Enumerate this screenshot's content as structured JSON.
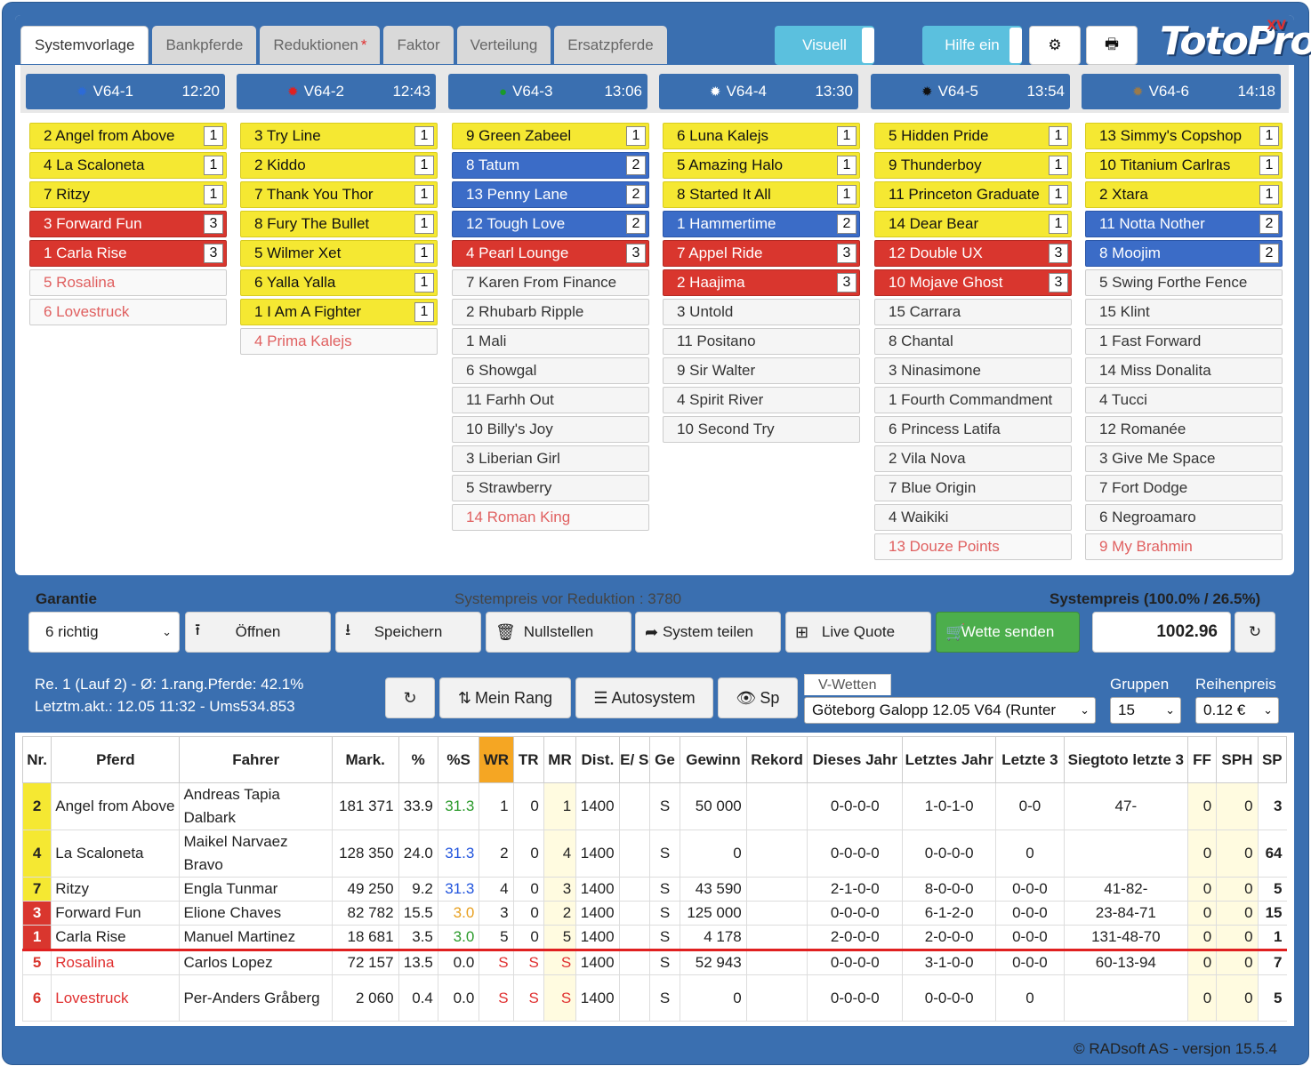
{
  "tabs": [
    "Systemvorlage",
    "Bankpferde",
    "Reduktionen",
    "Faktor",
    "Verteilung",
    "Ersatzpferde"
  ],
  "reduktionen_marker": "*",
  "top": {
    "visuell": "Visuell",
    "hilfe": "Hilfe ein",
    "logo": "TotoPro",
    "logo_sup": "XV"
  },
  "races": [
    {
      "name": "V64-1",
      "time": "12:20",
      "dot": "#2d6bd6",
      "dot_icon": "sun-icon"
    },
    {
      "name": "V64-2",
      "time": "12:43",
      "dot": "#e02020",
      "dot_icon": "sun-icon"
    },
    {
      "name": "V64-3",
      "time": "13:06",
      "dot": "#1a9a2a",
      "dot_icon": "circle-icon"
    },
    {
      "name": "V64-4",
      "time": "13:30",
      "dot": "#ffffff",
      "dot_icon": "sun-icon"
    },
    {
      "name": "V64-5",
      "time": "13:54",
      "dot": "#111111",
      "dot_icon": "sun-icon"
    },
    {
      "name": "V64-6",
      "time": "14:18",
      "dot": "#9a7a4a",
      "dot_icon": "sun-icon"
    }
  ],
  "columns": [
    [
      {
        "t": "2 Angel from Above",
        "c": "y",
        "r": "1"
      },
      {
        "t": "4 La Scaloneta",
        "c": "y",
        "r": "1"
      },
      {
        "t": "7 Ritzy",
        "c": "y",
        "r": "1"
      },
      {
        "t": "3 Forward Fun",
        "c": "r",
        "r": "3"
      },
      {
        "t": "1 Carla Rise",
        "c": "r",
        "r": "3"
      },
      {
        "t": "5 Rosalina",
        "c": "x",
        "r": ""
      },
      {
        "t": "6 Lovestruck",
        "c": "x",
        "r": ""
      }
    ],
    [
      {
        "t": "3 Try Line",
        "c": "y",
        "r": "1"
      },
      {
        "t": "2 Kiddo",
        "c": "y",
        "r": "1"
      },
      {
        "t": "7 Thank You Thor",
        "c": "y",
        "r": "1"
      },
      {
        "t": "8 Fury The Bullet",
        "c": "y",
        "r": "1"
      },
      {
        "t": "5 Wilmer Xet",
        "c": "y",
        "r": "1"
      },
      {
        "t": "6 Yalla Yalla",
        "c": "y",
        "r": "1"
      },
      {
        "t": "1 I Am A Fighter",
        "c": "y",
        "r": "1"
      },
      {
        "t": "4 Prima Kalejs",
        "c": "x",
        "r": ""
      }
    ],
    [
      {
        "t": "9 Green Zabeel",
        "c": "y",
        "r": "1"
      },
      {
        "t": "8 Tatum",
        "c": "b",
        "r": "2"
      },
      {
        "t": "13 Penny Lane",
        "c": "b",
        "r": "2"
      },
      {
        "t": "12 Tough Love",
        "c": "b",
        "r": "2"
      },
      {
        "t": "4 Pearl Lounge",
        "c": "r",
        "r": "3"
      },
      {
        "t": "7 Karen From Finance",
        "c": "w",
        "r": ""
      },
      {
        "t": "2 Rhubarb Ripple",
        "c": "w",
        "r": ""
      },
      {
        "t": "1 Mali",
        "c": "w",
        "r": ""
      },
      {
        "t": "6 Showgal",
        "c": "w",
        "r": ""
      },
      {
        "t": "11 Farhh Out",
        "c": "w",
        "r": ""
      },
      {
        "t": "10 Billy's Joy",
        "c": "w",
        "r": ""
      },
      {
        "t": "3 Liberian Girl",
        "c": "w",
        "r": ""
      },
      {
        "t": "5 Strawberry",
        "c": "w",
        "r": ""
      },
      {
        "t": "14 Roman King",
        "c": "x",
        "r": ""
      }
    ],
    [
      {
        "t": "6 Luna Kalejs",
        "c": "y",
        "r": "1"
      },
      {
        "t": "5 Amazing Halo",
        "c": "y",
        "r": "1"
      },
      {
        "t": "8 Started It All",
        "c": "y",
        "r": "1"
      },
      {
        "t": "1 Hammertime",
        "c": "b",
        "r": "2"
      },
      {
        "t": "7 Appel Ride",
        "c": "r",
        "r": "3"
      },
      {
        "t": "2 Haajima",
        "c": "r",
        "r": "3"
      },
      {
        "t": "3 Untold",
        "c": "w",
        "r": ""
      },
      {
        "t": "11 Positano",
        "c": "w",
        "r": ""
      },
      {
        "t": "9 Sir Walter",
        "c": "w",
        "r": ""
      },
      {
        "t": "4 Spirit River",
        "c": "w",
        "r": ""
      },
      {
        "t": "10 Second Try",
        "c": "w",
        "r": ""
      }
    ],
    [
      {
        "t": "5 Hidden Pride",
        "c": "y",
        "r": "1"
      },
      {
        "t": "9 Thunderboy",
        "c": "y",
        "r": "1"
      },
      {
        "t": "11 Princeton Graduate",
        "c": "y",
        "r": "1"
      },
      {
        "t": "14 Dear Bear",
        "c": "y",
        "r": "1"
      },
      {
        "t": "12 Double UX",
        "c": "r",
        "r": "3"
      },
      {
        "t": "10 Mojave Ghost",
        "c": "r",
        "r": "3"
      },
      {
        "t": "15 Carrara",
        "c": "w",
        "r": ""
      },
      {
        "t": "8 Chantal",
        "c": "w",
        "r": ""
      },
      {
        "t": "3 Ninasimone",
        "c": "w",
        "r": ""
      },
      {
        "t": "1 Fourth Commandment",
        "c": "w",
        "r": ""
      },
      {
        "t": "6 Princess Latifa",
        "c": "w",
        "r": ""
      },
      {
        "t": "2 Vila Nova",
        "c": "w",
        "r": ""
      },
      {
        "t": "7 Blue Origin",
        "c": "w",
        "r": ""
      },
      {
        "t": "4 Waikiki",
        "c": "w",
        "r": ""
      },
      {
        "t": "13 Douze Points",
        "c": "x",
        "r": ""
      }
    ],
    [
      {
        "t": "13 Simmy's Copshop",
        "c": "y",
        "r": "1"
      },
      {
        "t": "10 Titanium Carlras",
        "c": "y",
        "r": "1"
      },
      {
        "t": "2 Xtara",
        "c": "y",
        "r": "1"
      },
      {
        "t": "11 Notta Nother",
        "c": "b",
        "r": "2"
      },
      {
        "t": "8 Moojim",
        "c": "b",
        "r": "2"
      },
      {
        "t": "5 Swing Forthe Fence",
        "c": "w",
        "r": ""
      },
      {
        "t": "15 Klint",
        "c": "w",
        "r": ""
      },
      {
        "t": "1 Fast Forward",
        "c": "w",
        "r": ""
      },
      {
        "t": "14 Miss Donalita",
        "c": "w",
        "r": ""
      },
      {
        "t": "4 Tucci",
        "c": "w",
        "r": ""
      },
      {
        "t": "12 Romanée",
        "c": "w",
        "r": ""
      },
      {
        "t": "3 Give Me Space",
        "c": "w",
        "r": ""
      },
      {
        "t": "7 Fort Dodge",
        "c": "w",
        "r": ""
      },
      {
        "t": "6 Negroamaro",
        "c": "w",
        "r": ""
      },
      {
        "t": "9 My Brahmin",
        "c": "x",
        "r": ""
      }
    ]
  ],
  "mid": {
    "garantie": "Garantie",
    "systempreis_vor": "Systempreis vor Reduktion : 3780",
    "systempreis": "Systempreis (100.0% / 26.5%)",
    "richtig": "6 richtig",
    "oeffnen": "Öffnen",
    "speichern": "Speichern",
    "nullstellen": "Nullstellen",
    "teilen": "System teilen",
    "livequote": "Live Quote",
    "senden": "Wette senden",
    "price": "1002.96"
  },
  "info": {
    "line1": "Re. 1 (Lauf 2) - Ø: 1.rang.Pferde: 42.1%",
    "line2": "Letztm.akt.: 12.05 11:32 - Ums534.853",
    "meinrang": "Mein Rang",
    "autosystem": "Autosystem",
    "sp": "Sp",
    "vwetten": "V-Wetten",
    "race_select": "Göteborg Galopp 12.05 V64 (Runter",
    "gruppen": "Gruppen",
    "gruppen_val": "15",
    "reihenpreis": "Reihenpreis",
    "reihenpreis_val": "0.12 €"
  },
  "table": {
    "headers": [
      "Nr.",
      "Pferd",
      "Fahrer",
      "Mark.",
      "%",
      "%S",
      "WR",
      "TR",
      "MR",
      "Dist.",
      "E/ S",
      "Ge",
      "Gewinn",
      "Rekord",
      "Dieses Jahr",
      "Letztes Jahr",
      "Letzte 3",
      "Siegtoto letzte 3",
      "FF",
      "SPH",
      "SP"
    ],
    "rows": [
      {
        "nr": "2",
        "nc": "y",
        "pferd": "Angel from Above",
        "fahrer": "Andreas Tapia Dalbark",
        "mark": "181 371",
        "pct": "33.9",
        "ps": "31.3",
        "psc": "green",
        "wr": "1",
        "tr": "0",
        "mr": "1",
        "dist": "1400",
        "es": "",
        "ge": "S",
        "gewinn": "50 000",
        "rekord": "",
        "dj": "0-0-0-0",
        "lj": "1-0-1-0",
        "l3": "0-0",
        "st": "47-",
        "ff": "0",
        "sph": "0",
        "sp": "3",
        "tall": true
      },
      {
        "nr": "4",
        "nc": "y",
        "pferd": "La Scaloneta",
        "fahrer": "Maikel Narvaez Bravo",
        "mark": "128 350",
        "pct": "24.0",
        "ps": "31.3",
        "psc": "blue",
        "wr": "2",
        "tr": "0",
        "mr": "4",
        "dist": "1400",
        "es": "",
        "ge": "S",
        "gewinn": "0",
        "rekord": "",
        "dj": "0-0-0-0",
        "lj": "0-0-0-0",
        "l3": "0",
        "st": "",
        "ff": "0",
        "sph": "0",
        "sp": "64",
        "tall": true
      },
      {
        "nr": "7",
        "nc": "y",
        "pferd": "Ritzy",
        "fahrer": "Engla Tunmar",
        "mark": "49 250",
        "pct": "9.2",
        "ps": "31.3",
        "psc": "blue",
        "wr": "4",
        "tr": "0",
        "mr": "3",
        "dist": "1400",
        "es": "",
        "ge": "S",
        "gewinn": "43 590",
        "rekord": "",
        "dj": "2-1-0-0",
        "lj": "8-0-0-0",
        "l3": "0-0-0",
        "st": "41-82-",
        "ff": "0",
        "sph": "0",
        "sp": "5"
      },
      {
        "nr": "3",
        "nc": "r",
        "pferd": "Forward Fun",
        "fahrer": "Elione Chaves",
        "mark": "82 782",
        "pct": "15.5",
        "ps": "3.0",
        "psc": "orange",
        "wr": "3",
        "tr": "0",
        "mr": "2",
        "dist": "1400",
        "es": "",
        "ge": "S",
        "gewinn": "125 000",
        "rekord": "",
        "dj": "0-0-0-0",
        "lj": "6-1-2-0",
        "l3": "0-0-0",
        "st": "23-84-71",
        "ff": "0",
        "sph": "0",
        "sp": "15"
      },
      {
        "nr": "1",
        "nc": "r",
        "pferd": "Carla Rise",
        "fahrer": "Manuel Martinez",
        "mark": "18 681",
        "pct": "3.5",
        "ps": "3.0",
        "psc": "green",
        "wr": "5",
        "tr": "0",
        "mr": "5",
        "dist": "1400",
        "es": "",
        "ge": "S",
        "gewinn": "4 178",
        "rekord": "",
        "dj": "2-0-0-0",
        "lj": "2-0-0-0",
        "l3": "0-0-0",
        "st": "131-48-70",
        "ff": "0",
        "sph": "0",
        "sp": "1"
      },
      {
        "nr": "5",
        "nc": "red",
        "pferd": "Rosalina",
        "fahrer": "Carlos Lopez",
        "mark": "72 157",
        "pct": "13.5",
        "ps": "0.0",
        "psc": "",
        "wr": "S",
        "tr": "S",
        "mr": "S",
        "dist": "1400",
        "es": "",
        "ge": "S",
        "gewinn": "52 943",
        "rekord": "",
        "dj": "0-0-0-0",
        "lj": "3-1-0-0",
        "l3": "0-0-0",
        "st": "60-13-94",
        "ff": "0",
        "sph": "0",
        "sp": "7",
        "cut": true,
        "scr": true
      },
      {
        "nr": "6",
        "nc": "red",
        "pferd": "Lovestruck",
        "fahrer": "Per-Anders Gråberg",
        "mark": "2 060",
        "pct": "0.4",
        "ps": "0.0",
        "psc": "",
        "wr": "S",
        "tr": "S",
        "mr": "S",
        "dist": "1400",
        "es": "",
        "ge": "S",
        "gewinn": "0",
        "rekord": "",
        "dj": "0-0-0-0",
        "lj": "0-0-0-0",
        "l3": "0",
        "st": "",
        "ff": "0",
        "sph": "0",
        "sp": "5",
        "tall": true,
        "scr": true
      }
    ]
  },
  "footer": "© RADsoft AS - versjon 15.5.4"
}
